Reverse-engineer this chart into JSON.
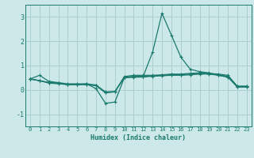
{
  "xlabel": "Humidex (Indice chaleur)",
  "background_color": "#cce8e8",
  "line_color": "#1a7a6e",
  "grid_color": "#aacfcf",
  "xlim": [
    -0.5,
    23.5
  ],
  "ylim": [
    -1.5,
    3.5
  ],
  "yticks": [
    -1,
    0,
    1,
    2,
    3
  ],
  "xticks": [
    0,
    1,
    2,
    3,
    4,
    5,
    6,
    7,
    8,
    9,
    10,
    11,
    12,
    13,
    14,
    15,
    16,
    17,
    18,
    19,
    20,
    21,
    22,
    23
  ],
  "lines": [
    {
      "x": [
        0,
        1,
        2,
        3,
        4,
        5,
        6,
        7,
        8,
        9,
        10,
        11,
        12,
        13,
        14,
        15,
        16,
        17,
        18,
        19,
        20,
        21,
        22,
        23
      ],
      "y": [
        0.45,
        0.6,
        0.35,
        0.3,
        0.25,
        0.25,
        0.25,
        0.05,
        -0.55,
        -0.5,
        0.5,
        0.55,
        0.55,
        1.55,
        3.15,
        2.25,
        1.35,
        0.85,
        0.75,
        0.7,
        0.6,
        0.55,
        0.15,
        0.15
      ]
    },
    {
      "x": [
        0,
        1,
        2,
        3,
        4,
        5,
        6,
        7,
        8,
        9,
        10,
        11,
        12,
        13,
        14,
        15,
        16,
        17,
        18,
        19,
        20,
        21,
        22,
        23
      ],
      "y": [
        0.45,
        0.38,
        0.3,
        0.28,
        0.22,
        0.22,
        0.22,
        0.18,
        -0.1,
        -0.08,
        0.55,
        0.6,
        0.6,
        0.6,
        0.62,
        0.65,
        0.65,
        0.68,
        0.7,
        0.68,
        0.65,
        0.6,
        0.15,
        0.15
      ]
    },
    {
      "x": [
        0,
        1,
        2,
        3,
        4,
        5,
        6,
        7,
        8,
        9,
        10,
        11,
        12,
        13,
        14,
        15,
        16,
        17,
        18,
        19,
        20,
        21,
        22,
        23
      ],
      "y": [
        0.45,
        0.38,
        0.28,
        0.25,
        0.22,
        0.22,
        0.22,
        0.18,
        -0.12,
        -0.08,
        0.52,
        0.55,
        0.55,
        0.58,
        0.6,
        0.63,
        0.62,
        0.65,
        0.68,
        0.68,
        0.62,
        0.55,
        0.12,
        0.12
      ]
    },
    {
      "x": [
        0,
        1,
        2,
        3,
        4,
        5,
        6,
        7,
        8,
        9,
        10,
        11,
        12,
        13,
        14,
        15,
        16,
        17,
        18,
        19,
        20,
        21,
        22,
        23
      ],
      "y": [
        0.45,
        0.38,
        0.3,
        0.27,
        0.22,
        0.22,
        0.25,
        0.2,
        -0.08,
        -0.07,
        0.5,
        0.52,
        0.53,
        0.56,
        0.58,
        0.6,
        0.6,
        0.62,
        0.65,
        0.65,
        0.6,
        0.52,
        0.12,
        0.12
      ]
    }
  ]
}
